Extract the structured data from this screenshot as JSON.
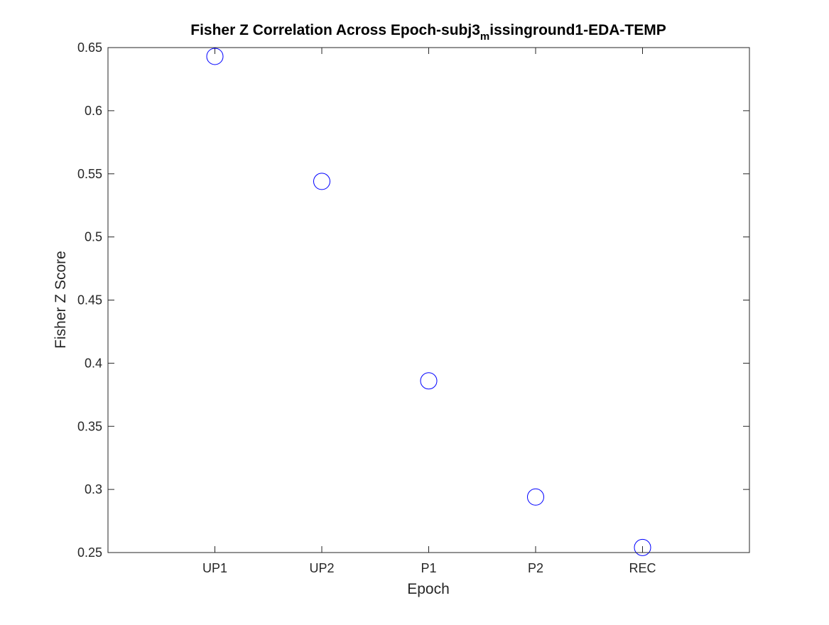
{
  "chart_data": {
    "type": "scatter",
    "title": {
      "part1": "Fisher Z Correlation Across Epoch-subj3",
      "subscript": "m",
      "part2": "issinground1-EDA-TEMP"
    },
    "xlabel": "Epoch",
    "ylabel": "Fisher Z Score",
    "categories": [
      "UP1",
      "UP2",
      "P1",
      "P2",
      "REC"
    ],
    "x_range": [
      0,
      6
    ],
    "series": [
      {
        "values": [
          0.643,
          0.544,
          0.386,
          0.294,
          0.254
        ],
        "marker": "circle",
        "filled": false,
        "color": "#0000ff"
      }
    ],
    "ylim": [
      0.25,
      0.65
    ],
    "yticks": [
      "0.25",
      "0.3",
      "0.35",
      "0.4",
      "0.45",
      "0.5",
      "0.55",
      "0.6",
      "0.65"
    ],
    "grid": false,
    "box": true
  }
}
